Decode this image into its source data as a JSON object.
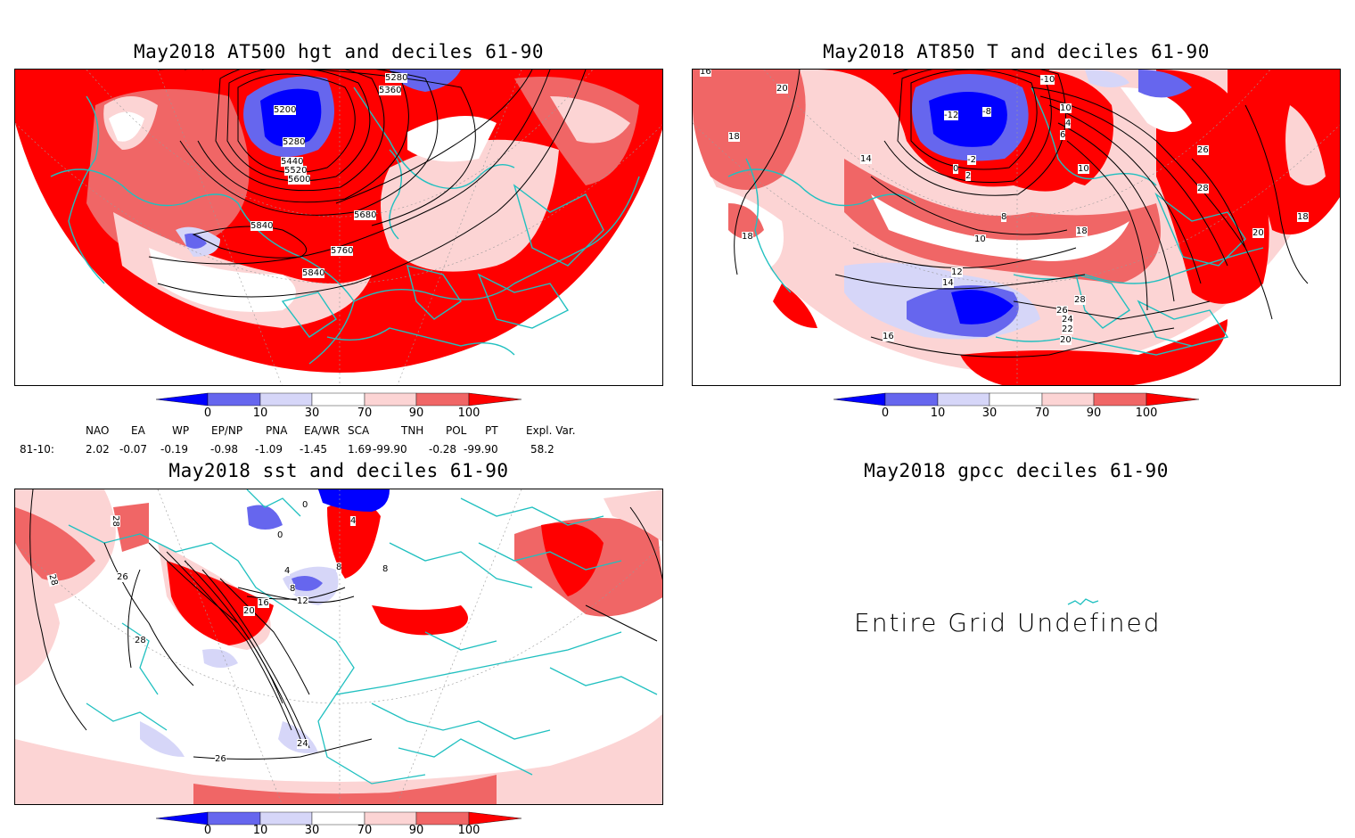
{
  "panels": {
    "at500": {
      "title": "May2018 AT500 hgt and deciles 61-90",
      "contour_labels": [
        "5280",
        "5360",
        "5200",
        "5280",
        "5440",
        "5520",
        "5600",
        "5680",
        "5840",
        "5760",
        "5840"
      ]
    },
    "at850": {
      "title": "May2018 AT850 T and deciles 61-90",
      "contour_labels": [
        "16",
        "18",
        "20",
        "14",
        "18",
        "-10",
        "-12",
        "-8",
        "-2",
        "0",
        "2",
        "4",
        "6",
        "8",
        "10",
        "10",
        "12",
        "14",
        "16",
        "18",
        "20",
        "22",
        "24",
        "26",
        "28",
        "26",
        "28",
        "18",
        "20",
        "10"
      ]
    },
    "sst": {
      "title": "May2018 sst and deciles 61-90",
      "contour_labels": [
        "28",
        "28",
        "26",
        "28",
        "0",
        "0",
        "4",
        "8",
        "4",
        "8",
        "12",
        "16",
        "20",
        "24",
        "26",
        "8"
      ]
    },
    "gpcc": {
      "title": "May2018 gpcc deciles 61-90",
      "message": "Entire Grid Undefined"
    }
  },
  "colorbar": {
    "labels": [
      "0",
      "10",
      "30",
      "70",
      "90",
      "100"
    ],
    "colors": [
      "#0000ff",
      "#6666ee",
      "#d6d6f8",
      "#ffffff",
      "#fcd4d4",
      "#f06666",
      "#ff0000"
    ]
  },
  "indices": {
    "headers": [
      "NAO",
      "EA",
      "WP",
      "EP/NP",
      "PNA",
      "EA/WR",
      "SCA",
      "TNH",
      "POL",
      "PT",
      "Expl. Var."
    ],
    "row_label": "81-10:",
    "values": [
      "2.02",
      "-0.07",
      "-0.19",
      "-0.98",
      "-1.09",
      "-1.45",
      "1.69",
      "-99.90",
      "-0.28",
      "-99.90",
      "58.2"
    ]
  }
}
